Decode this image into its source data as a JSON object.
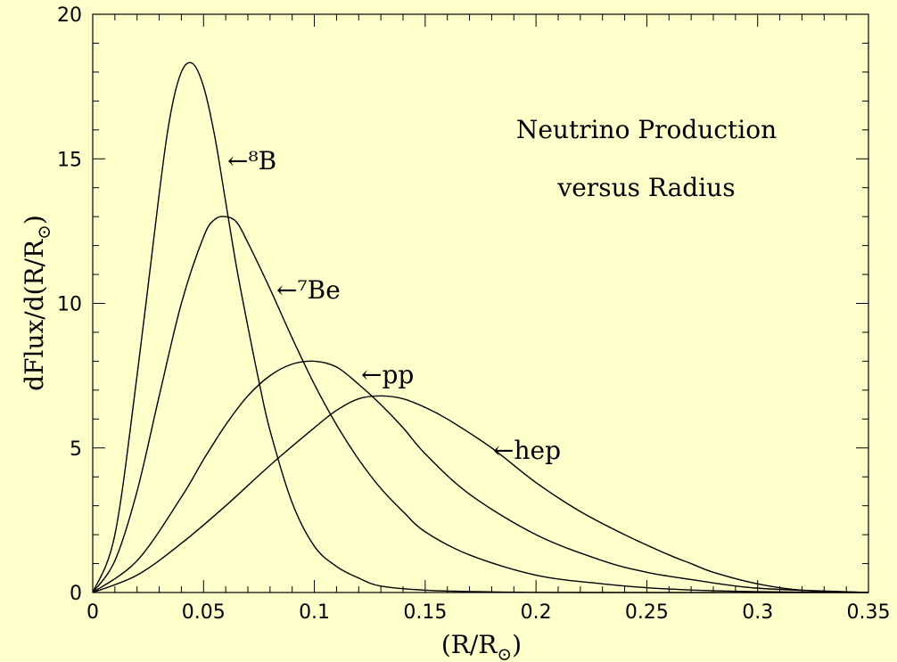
{
  "chart_data": {
    "type": "line",
    "title": "Neutrino Production",
    "subtitle": "versus Radius",
    "xlabel": {
      "main": "(R/R",
      "sub": "⊙",
      "tail": ")"
    },
    "ylabel": {
      "main": "dFlux/d(R/R",
      "sub": "⊙",
      "tail": ")"
    },
    "xlim": [
      0,
      0.35
    ],
    "ylim": [
      0,
      20
    ],
    "x_ticks": [
      0,
      0.05,
      0.1,
      0.15,
      0.2,
      0.25,
      0.3,
      0.35
    ],
    "x_tick_labels": [
      "0",
      "0.05",
      "0.1",
      "0.15",
      "0.2",
      "0.25",
      "0.3",
      "0.35"
    ],
    "y_ticks": [
      0,
      5,
      10,
      15,
      20
    ],
    "y_tick_labels": [
      "0",
      "5",
      "10",
      "15",
      "20"
    ],
    "grid": false,
    "series": [
      {
        "name": "⁸B",
        "arrow": "←",
        "x": [
          0,
          0.01,
          0.02,
          0.03,
          0.035,
          0.04,
          0.045,
          0.05,
          0.055,
          0.06,
          0.065,
          0.07,
          0.075,
          0.08,
          0.09,
          0.1,
          0.11,
          0.12,
          0.13,
          0.15,
          0.18,
          0.22,
          0.35
        ],
        "y": [
          0,
          2.0,
          7.5,
          13.8,
          16.5,
          18.0,
          18.3,
          17.5,
          15.8,
          13.5,
          11.2,
          9.2,
          7.3,
          5.6,
          3.1,
          1.6,
          0.9,
          0.5,
          0.22,
          0.08,
          0.02,
          0.0,
          0.0
        ]
      },
      {
        "name": "⁷Be",
        "arrow": "←",
        "x": [
          0,
          0.01,
          0.02,
          0.03,
          0.04,
          0.05,
          0.055,
          0.06,
          0.065,
          0.07,
          0.08,
          0.09,
          0.1,
          0.11,
          0.12,
          0.13,
          0.14,
          0.15,
          0.17,
          0.2,
          0.23,
          0.26,
          0.3,
          0.35
        ],
        "y": [
          0,
          1.1,
          3.5,
          6.8,
          10.0,
          12.3,
          12.9,
          13.0,
          12.8,
          12.1,
          10.5,
          8.8,
          7.2,
          5.8,
          4.6,
          3.6,
          2.8,
          2.1,
          1.3,
          0.6,
          0.3,
          0.12,
          0.03,
          0.0
        ]
      },
      {
        "name": "pp",
        "arrow": "←",
        "x": [
          0,
          0.02,
          0.04,
          0.05,
          0.06,
          0.07,
          0.08,
          0.09,
          0.1,
          0.11,
          0.12,
          0.13,
          0.14,
          0.15,
          0.17,
          0.2,
          0.23,
          0.25,
          0.27,
          0.3,
          0.35
        ],
        "y": [
          0,
          1.1,
          3.3,
          4.6,
          5.8,
          6.8,
          7.5,
          7.9,
          8.0,
          7.8,
          7.2,
          6.5,
          5.7,
          4.8,
          3.4,
          2.0,
          1.1,
          0.7,
          0.45,
          0.15,
          0.0
        ]
      },
      {
        "name": "hep",
        "arrow": "←",
        "x": [
          0,
          0.02,
          0.04,
          0.06,
          0.08,
          0.1,
          0.11,
          0.12,
          0.13,
          0.14,
          0.15,
          0.16,
          0.18,
          0.2,
          0.22,
          0.24,
          0.26,
          0.27,
          0.28,
          0.3,
          0.32,
          0.35
        ],
        "y": [
          0,
          0.6,
          1.7,
          3.0,
          4.4,
          5.7,
          6.3,
          6.7,
          6.8,
          6.7,
          6.4,
          6.0,
          5.0,
          3.8,
          2.8,
          2.0,
          1.3,
          1.0,
          0.7,
          0.3,
          0.08,
          0.0
        ]
      }
    ]
  }
}
